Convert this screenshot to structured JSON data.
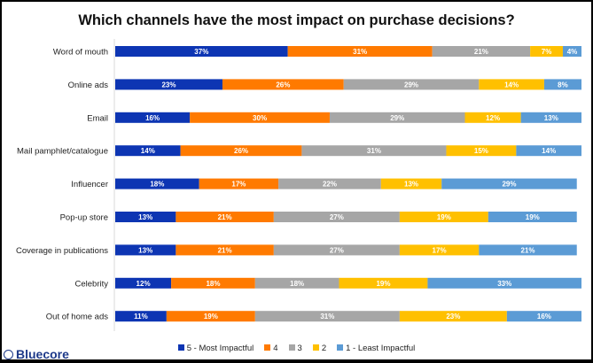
{
  "chart_data": {
    "type": "bar",
    "orientation": "horizontal",
    "stacked": true,
    "title": "Which channels have the most impact on purchase decisions?",
    "xlabel": "",
    "ylabel": "",
    "categories": [
      "Word of mouth",
      "Online ads",
      "Email",
      "Mail pamphlet/catalogue",
      "Influencer",
      "Pop-up store",
      "Coverage in publications",
      "Celebrity",
      "Out of home ads"
    ],
    "series": [
      {
        "name": "5 - Most Impactful",
        "color": "#0D35B3",
        "values": [
          37,
          23,
          16,
          14,
          18,
          13,
          13,
          12,
          11
        ]
      },
      {
        "name": "4",
        "color": "#FF7A00",
        "values": [
          31,
          26,
          30,
          26,
          17,
          21,
          21,
          18,
          19
        ]
      },
      {
        "name": "3",
        "color": "#A6A6A6",
        "values": [
          21,
          29,
          29,
          31,
          22,
          27,
          27,
          18,
          31
        ]
      },
      {
        "name": "2",
        "color": "#FFC000",
        "values": [
          7,
          14,
          12,
          15,
          13,
          19,
          17,
          19,
          23
        ]
      },
      {
        "name": "1 - Least Impactful",
        "color": "#5B9BD5",
        "values": [
          4,
          8,
          13,
          14,
          29,
          19,
          21,
          33,
          16
        ]
      }
    ],
    "value_labels": [
      [
        "37%",
        "31%",
        "21%",
        "7%",
        "4%"
      ],
      [
        "23%",
        "26%",
        "29%",
        "14%",
        "8%"
      ],
      [
        "16%",
        "30%",
        "29%",
        "12%",
        "13%"
      ],
      [
        "14%",
        "26%",
        "31%",
        "15%",
        "14%"
      ],
      [
        "18%",
        "17%",
        "22%",
        "13%",
        "29%"
      ],
      [
        "13%",
        "21%",
        "27%",
        "19%",
        "19%"
      ],
      [
        "13%",
        "21%",
        "27%",
        "17%",
        "21%"
      ],
      [
        "12%",
        "18%",
        "18%",
        "19%",
        "33%"
      ],
      [
        "11%",
        "19%",
        "31%",
        "23%",
        "16%"
      ]
    ],
    "xlim": [
      0,
      100
    ],
    "grid": false,
    "legend_position": "bottom"
  },
  "brand": {
    "name": "Bluecore"
  }
}
